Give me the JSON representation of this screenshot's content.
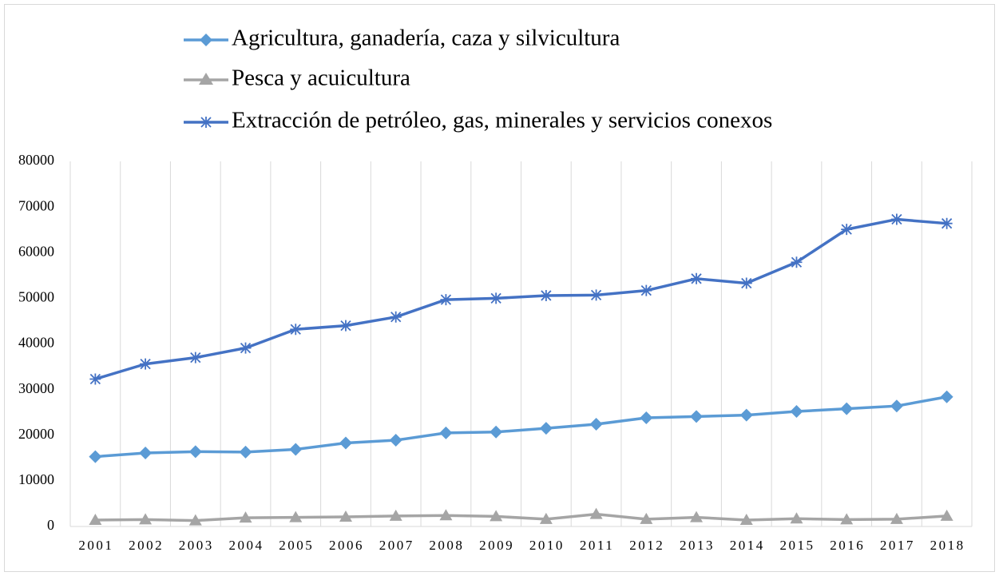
{
  "chart_data": {
    "type": "line",
    "categories": [
      "2001",
      "2002",
      "2003",
      "2004",
      "2005",
      "2006",
      "2007",
      "2008",
      "2009",
      "2010",
      "2011",
      "2012",
      "2013",
      "2014",
      "2015",
      "2016",
      "2017",
      "2018"
    ],
    "series": [
      {
        "name": "Agricultura, ganadería, caza y silvicultura",
        "color": "#5b9bd5",
        "marker": "diamond",
        "values": [
          15300,
          16100,
          16400,
          16300,
          16900,
          18300,
          18900,
          20500,
          20700,
          21500,
          22400,
          23800,
          24100,
          24400,
          25200,
          25800,
          26400,
          28400
        ]
      },
      {
        "name": "Pesca y acuicultura",
        "color": "#a5a5a5",
        "marker": "triangle",
        "values": [
          1400,
          1500,
          1300,
          1900,
          2000,
          2100,
          2300,
          2400,
          2200,
          1600,
          2700,
          1600,
          2000,
          1400,
          1700,
          1500,
          1600,
          2300
        ]
      },
      {
        "name": "Extracción de petróleo, gas, minerales y servicios conexos",
        "color": "#4472c4",
        "marker": "asterisk",
        "values": [
          32300,
          35600,
          37000,
          39100,
          43200,
          44000,
          45900,
          49700,
          50000,
          50600,
          50700,
          51700,
          54300,
          53300,
          57900,
          65100,
          67300,
          66400
        ]
      }
    ],
    "ylim": [
      0,
      80000
    ],
    "yticks": [
      0,
      10000,
      20000,
      30000,
      40000,
      50000,
      60000,
      70000,
      80000
    ],
    "grid": true,
    "legend": "top"
  }
}
